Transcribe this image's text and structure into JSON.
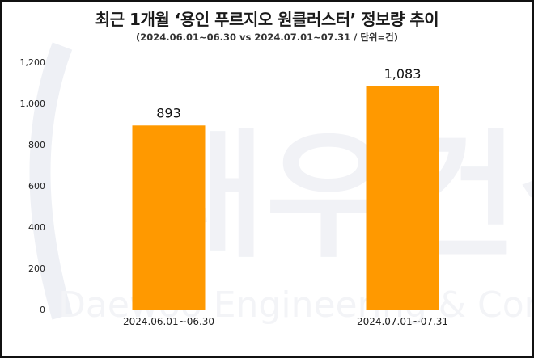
{
  "chart_data": {
    "type": "bar",
    "title": "최근 1개월 ‘용인 푸르지오 원클러스터’ 정보량 추이",
    "subtitle": "(2024.06.01~06.30 vs 2024.07.01~07.31  / 단위=건)",
    "categories": [
      "2024.06.01~06.30",
      "2024.07.01~07.31"
    ],
    "values": [
      893,
      1083
    ],
    "value_labels": [
      "893",
      "1,083"
    ],
    "yticks": [
      0,
      200,
      400,
      600,
      800,
      1000,
      1200
    ],
    "ytick_labels": [
      "0",
      "200",
      "400",
      "600",
      "800",
      "1,000",
      "1,200"
    ],
    "ylim": [
      0,
      1200
    ],
    "xlabel": "",
    "ylabel": "",
    "grid": false,
    "bar_color": "#FF9900"
  },
  "watermark": {
    "logo_text": "대우건설",
    "tagline": "Daewoo Engineering & Construction"
  }
}
